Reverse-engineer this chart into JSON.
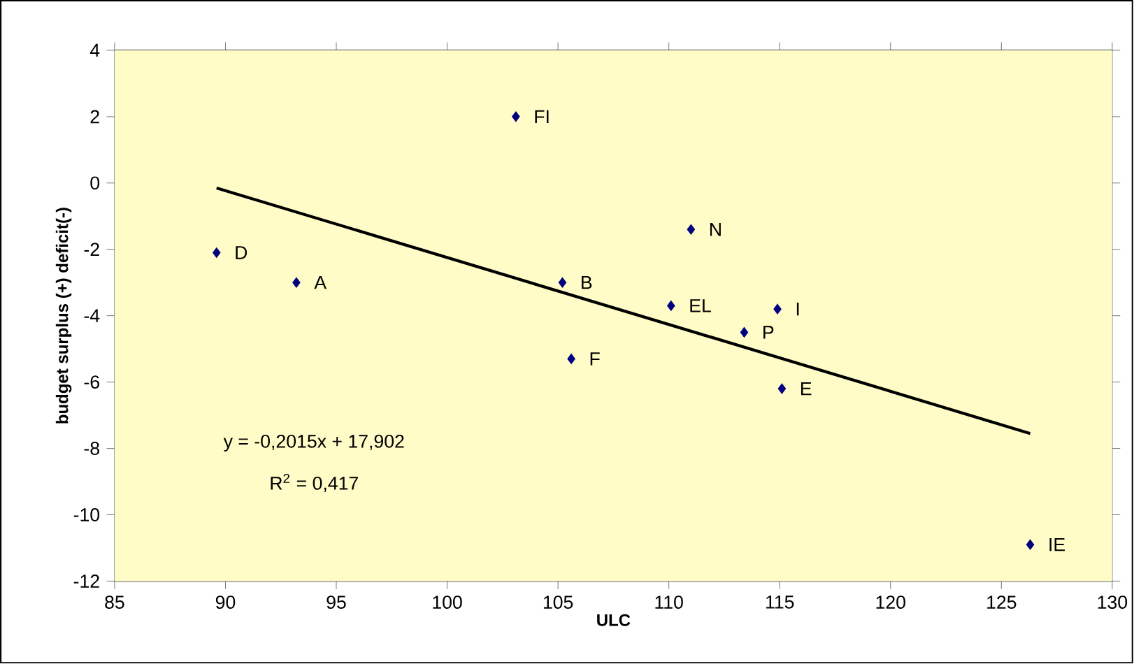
{
  "chart_data": {
    "type": "scatter",
    "xlabel": "ULC",
    "ylabel": "budget surplus (+) deficit(-)",
    "xlim": [
      85,
      130
    ],
    "xticks": [
      85,
      90,
      95,
      100,
      105,
      110,
      115,
      120,
      125,
      130
    ],
    "ylim": [
      -12,
      4
    ],
    "yticks": [
      -12,
      -10,
      -8,
      -6,
      -4,
      -2,
      0,
      2,
      4
    ],
    "grid": "y",
    "series": [
      {
        "color": "#000080",
        "marker": "diamond",
        "x": [
          103.1,
          89.6,
          93.2,
          105.2,
          111.0,
          110.1,
          114.9,
          113.4,
          105.6,
          115.1,
          126.3
        ],
        "values": [
          2.0,
          -2.1,
          -3.0,
          -3.0,
          -1.4,
          -3.7,
          -3.8,
          -4.5,
          -5.3,
          -6.2,
          -10.9
        ]
      },
      {
        "type": "line",
        "color": "#000000",
        "marker": "none",
        "x": [
          89.6,
          126.3
        ],
        "values": [
          -0.15,
          -7.55
        ]
      }
    ],
    "annotations": [
      {
        "text": "FI",
        "x": 103.1,
        "y": 2.0
      },
      {
        "text": "D",
        "x": 89.6,
        "y": -2.1
      },
      {
        "text": "A",
        "x": 93.2,
        "y": -3.0
      },
      {
        "text": "B",
        "x": 105.2,
        "y": -3.0
      },
      {
        "text": "N",
        "x": 111.0,
        "y": -1.4
      },
      {
        "text": "EL",
        "x": 110.1,
        "y": -3.7
      },
      {
        "text": "I",
        "x": 114.9,
        "y": -3.8
      },
      {
        "text": "P",
        "x": 113.4,
        "y": -4.5
      },
      {
        "text": "F",
        "x": 105.6,
        "y": -5.3
      },
      {
        "text": "E",
        "x": 115.1,
        "y": -6.2
      },
      {
        "text": "IE",
        "x": 126.3,
        "y": -10.9
      },
      "y = -0,2015x + 17,902",
      "R$^{2}$ = 0,417"
    ]
  }
}
